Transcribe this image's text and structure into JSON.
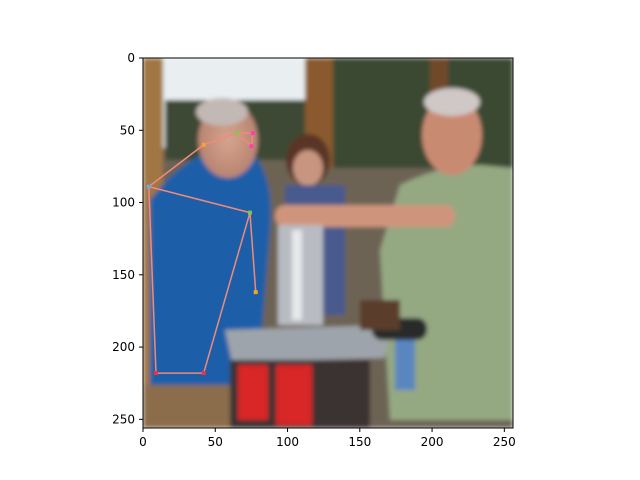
{
  "chart_data": {
    "type": "scatter",
    "title": "",
    "xlabel": "",
    "ylabel": "",
    "xlim": [
      0,
      256
    ],
    "ylim": [
      256,
      0
    ],
    "x_ticks": [
      0,
      50,
      100,
      150,
      200,
      250
    ],
    "y_ticks": [
      0,
      50,
      100,
      150,
      200,
      250
    ],
    "x_tick_labels": [
      "0",
      "50",
      "100",
      "150",
      "200",
      "250"
    ],
    "y_tick_labels": [
      "0",
      "50",
      "100",
      "150",
      "200",
      "250"
    ],
    "background": "photo of three people around a metal machine on a table",
    "grid": false,
    "keypoints": [
      {
        "x": 65,
        "y": 52
      },
      {
        "x": 76,
        "y": 52
      },
      {
        "x": 75,
        "y": 61
      },
      {
        "x": 42,
        "y": 60
      },
      {
        "x": 4,
        "y": 89
      },
      {
        "x": 74,
        "y": 107
      },
      {
        "x": 78,
        "y": 162
      },
      {
        "x": 9,
        "y": 218
      },
      {
        "x": 42,
        "y": 218
      }
    ],
    "skeleton": [
      [
        0,
        1
      ],
      [
        1,
        2
      ],
      [
        2,
        0
      ],
      [
        0,
        3
      ],
      [
        3,
        4
      ],
      [
        4,
        5
      ],
      [
        5,
        6
      ],
      [
        5,
        8
      ],
      [
        4,
        7
      ],
      [
        7,
        8
      ]
    ],
    "colors": {
      "skeleton_line": "#f08a7a",
      "marker_orange": "#f5a623",
      "marker_green": "#7ec850",
      "marker_pink": "#ff3fb0",
      "marker_blue": "#6aa9e9",
      "marker_red": "#e8334a"
    }
  }
}
